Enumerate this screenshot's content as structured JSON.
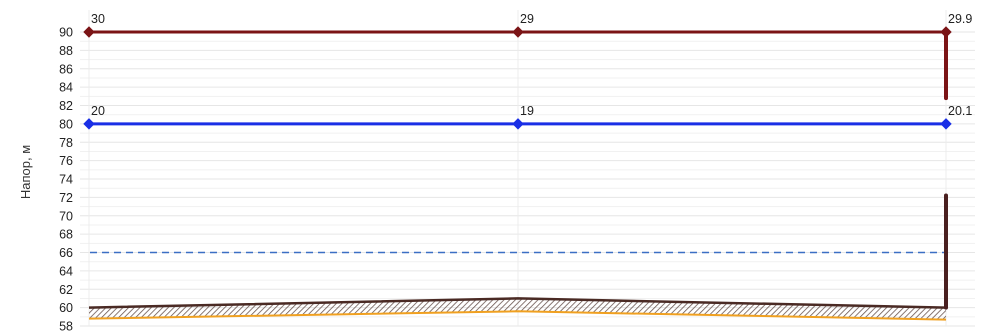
{
  "chart_data": {
    "type": "line",
    "ylabel": "Напор, м",
    "xlabel": "",
    "title": "",
    "ylim": [
      58,
      90
    ],
    "yticks": [
      58,
      60,
      62,
      64,
      66,
      68,
      70,
      72,
      74,
      76,
      78,
      80,
      82,
      84,
      86,
      88,
      90
    ],
    "grid": true,
    "x": [
      0,
      1,
      2
    ],
    "series": [
      {
        "key": "upper",
        "color": "#7b1416",
        "values": [
          90,
          90,
          90
        ],
        "labels": [
          "30",
          "29",
          "29.9"
        ]
      },
      {
        "key": "middle",
        "color": "#1a2fe6",
        "values": [
          80,
          80,
          80
        ],
        "labels": [
          "20",
          "19",
          "20.1"
        ]
      }
    ],
    "reference_line": {
      "value": 66,
      "color": "#3b6fc4",
      "style": "dashed"
    },
    "ground": {
      "top": [
        60,
        61,
        60
      ],
      "bottom": [
        58.8,
        59.6,
        58.7
      ],
      "color": "#4a2a24",
      "bottom_color": "#f0a020"
    },
    "end_segments": [
      {
        "from": 60,
        "to": 72.2,
        "color": "#4a2020"
      },
      {
        "from": 82.8,
        "to": 90,
        "color": "#7b1416"
      }
    ]
  }
}
